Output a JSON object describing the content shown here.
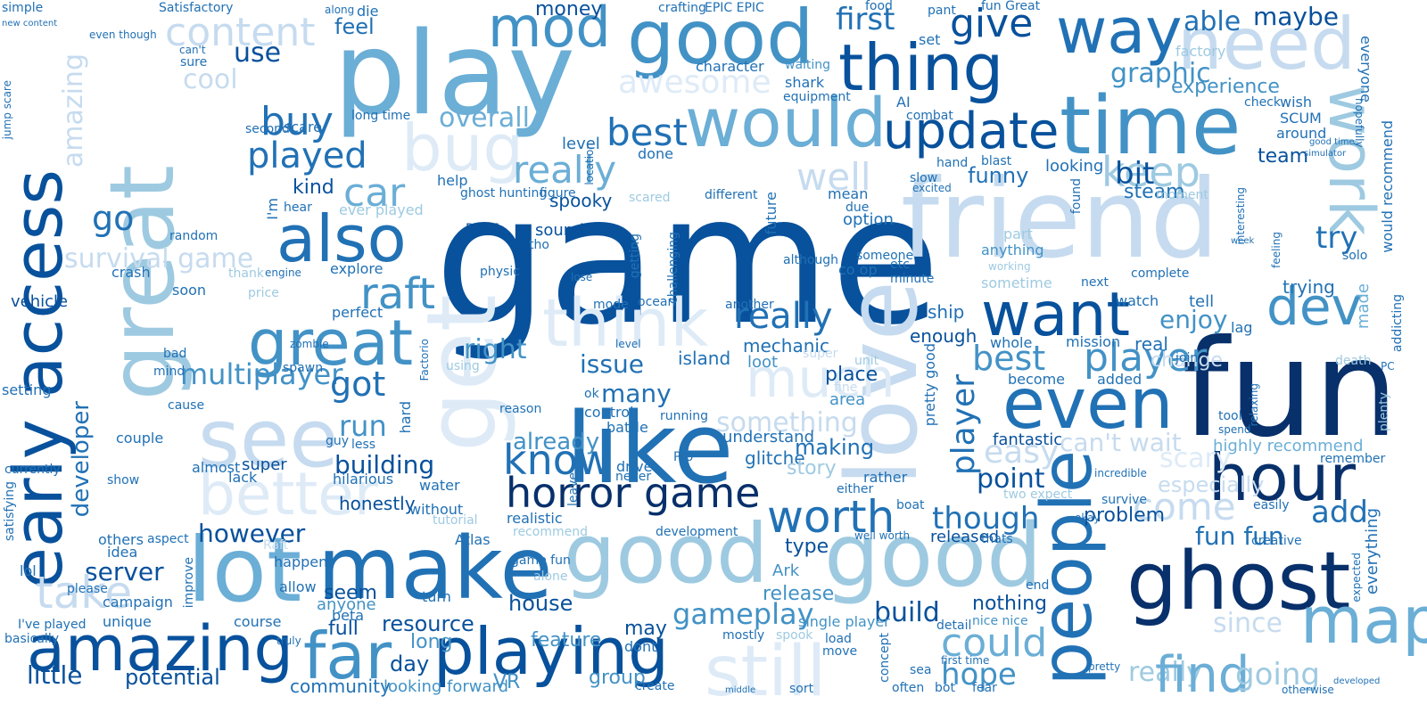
{
  "palette": {
    "c1": "#08306b",
    "c2": "#08519c",
    "c3": "#2171b5",
    "c4": "#4292c6",
    "c5": "#6baed6",
    "c6": "#9ecae1",
    "c7": "#c6dbef",
    "c8": "#deebf7"
  },
  "words": {
    "game": "game",
    "fun": "fun",
    "friend": "friend",
    "play": "play",
    "like": "like",
    "good": "good",
    "good_2": "good",
    "good_3": "good",
    "great": "great",
    "great_2": "great",
    "get": "get",
    "love": "love",
    "make": "make",
    "lot": "lot",
    "amazing": "amazing",
    "amazing_2": "amazing",
    "playing": "playing",
    "ghost": "ghost",
    "hour": "hour",
    "people": "people",
    "even": "even",
    "want": "want",
    "time": "time",
    "way": "way",
    "thing": "thing",
    "update": "update",
    "would": "would",
    "need": "need",
    "work": "work",
    "map": "map",
    "still": "still",
    "far": "far",
    "think": "think",
    "see": "see",
    "better": "better",
    "also": "also",
    "early_access": "early access",
    "bug": "bug",
    "much": "much",
    "mod": "mod",
    "really": "really",
    "really_2": "really",
    "really_3": "really",
    "played": "played",
    "raft": "raft",
    "know": "know",
    "horror_game": "horror game",
    "worth": "worth",
    "dev": "dev",
    "best": "best",
    "best_2": "best",
    "keep": "keep",
    "find": "find",
    "could": "could",
    "player": "player",
    "player_2": "player",
    "gameplay": "gameplay",
    "building": "building",
    "server": "server",
    "however": "however",
    "multiplayer": "multiplayer",
    "buy": "buy",
    "car": "car",
    "content": "content",
    "take": "take",
    "survival_game": "survival game",
    "first": "first",
    "give": "give",
    "graphic": "graphic",
    "experience": "experience",
    "awesome": "awesome",
    "fun_fun": "fun fun",
    "easy": "easy",
    "add": "add",
    "try": "try",
    "enjoy": "enjoy",
    "hope": "hope",
    "build": "build",
    "got": "got",
    "issue": "issue",
    "many": "many",
    "run": "run",
    "already": "already",
    "right": "right",
    "though": "though",
    "point": "point",
    "come": "come",
    "since": "since",
    "going": "going",
    "developer": "developer",
    "little": "little",
    "potential": "potential",
    "resource": "resource",
    "house": "house",
    "feature": "feature",
    "day": "day",
    "full": "full",
    "seem": "seem",
    "anyone": "anyone",
    "nothing": "nothing",
    "may": "may",
    "group": "group",
    "long": "long",
    "community": "community",
    "looking_forward": "looking forward",
    "VR": "VR",
    "money": "money",
    "overall": "overall",
    "feel": "feel",
    "use": "use",
    "cool": "cool",
    "kind": "kind",
    "go": "go",
    "funny": "funny",
    "bit": "bit",
    "steam": "steam",
    "team": "team",
    "maybe": "maybe",
    "able": "able",
    "well": "well",
    "fantastic": "fantastic",
    "problem": "problem",
    "released": "released",
    "especially": "especially",
    "cant_wait": "can't wait",
    "scary": "scary",
    "something": "something",
    "making": "making",
    "understand": "understand",
    "glitche": "glitche",
    "story": "story",
    "type": "type",
    "release": "release",
    "place": "place",
    "area": "area",
    "island": "island",
    "loot": "loot",
    "mechanic": "mechanic",
    "enough": "enough",
    "ship": "ship",
    "whole": "whole",
    "mission": "mission",
    "real": "real",
    "change": "change",
    "trying": "trying",
    "watch": "watch",
    "tell": "tell",
    "lag": "lag",
    "looking": "looking",
    "done": "done",
    "level": "level",
    "spooky": "spooky",
    "sound": "sound",
    "DayZ": "DayZ",
    "help": "help",
    "ghost_hunting": "ghost hunting",
    "figure": "figure",
    "explore": "explore",
    "perfect": "perfect",
    "said": "said",
    "soon": "soon",
    "random": "random",
    "crash": "crash",
    "vehicle": "vehicle",
    "spawn": "spawn",
    "setting": "setting",
    "couple": "couple",
    "almost": "almost",
    "super": "super",
    "lack": "lack",
    "hilarious": "hilarious",
    "honestly": "honestly",
    "water": "water",
    "without": "without",
    "others": "others",
    "idea": "idea",
    "happen": "happen",
    "allow": "allow",
    "campaign": "campaign",
    "unique": "unique",
    "lol": "lol",
    "please": "please",
    "Ive_played": "I've played",
    "basically": "basically",
    "currently": "currently",
    "satisfying": "satisfying",
    "show": "show",
    "cause": "cause",
    "mind": "mind",
    "bad": "bad",
    "character": "character",
    "shark": "shark",
    "waiting": "waiting",
    "equipment": "equipment",
    "long_time": "long time",
    "scare": "scare",
    "second": "second",
    "hear": "hear",
    "Im": "I'm",
    "simple": "simple",
    "new_content": "new content",
    "Satisfactory": "Satisfactory",
    "sure": "sure",
    "cant": "can't",
    "even_though": "even though",
    "jump_scare": "jump scare",
    "combat": "combat",
    "AI": "AI",
    "hand": "hand",
    "blast": "blast",
    "slow": "slow",
    "excited": "excited",
    "set": "set",
    "pant": "pant",
    "food": "food",
    "die": "die",
    "along": "along",
    "fun_Great": "fun Great",
    "crafting": "crafting",
    "EPIC_EPIC": "EPIC EPIC",
    "factory": "factory",
    "check": "check",
    "wish": "wish",
    "SCUM": "SCUM",
    "around": "around",
    "everyone": "everyone",
    "would_recommend": "would recommend",
    "made": "made",
    "solo": "solo",
    "PC": "PC",
    "tool": "tool",
    "spend": "spend",
    "highly_recommend": "highly recommend",
    "remember": "remember",
    "everything": "everything",
    "expected": "expected",
    "join": "join",
    "become": "become",
    "added": "added",
    "ok": "ok",
    "control": "control",
    "reason": "reason",
    "running": "running",
    "battle": "battle",
    "drive": "drive",
    "never": "never",
    "Pro": "Pro",
    "Atlas": "Atlas",
    "development": "development",
    "game_fun": "game fun",
    "create": "create",
    "etc": "etc",
    "although": "although",
    "option": "option",
    "co_op": "co op",
    "someone": "someone",
    "minute": "minute",
    "mean": "mean",
    "due": "due",
    "future": "future",
    "different": "different",
    "scared": "scared",
    "getting": "getting",
    "challenging": "challenging",
    "ocean": "ocean",
    "mode": "mode",
    "lose": "lose",
    "tho": "tho",
    "physic": "physic",
    "Ark": "Ark",
    "found": "found",
    "next": "next",
    "complete": "complete",
    "anything": "anything",
    "part": "part",
    "sometime": "sometime",
    "working": "working",
    "single_player": "single player",
    "load": "load",
    "move": "move",
    "spook": "spook",
    "concept": "concept",
    "detail": "detail",
    "nice_nice": "nice nice",
    "first_time": "first time",
    "sea": "sea",
    "often": "often",
    "bot": "bot",
    "fear": "fear",
    "end": "end",
    "boat": "boat",
    "okay": "okay",
    "thats": "thats",
    "pretty_good": "pretty good",
    "pretty": "pretty",
    "incredible": "incredible",
    "survive": "survive",
    "easily": "easily",
    "creative": "creative",
    "otherwise": "otherwise",
    "developed": "developed",
    "sort": "sort",
    "course": "course",
    "beta": "beta",
    "turn": "turn",
    "dont": "dont",
    "alone": "alone",
    "mostly": "mostly",
    "middle": "middle",
    "tutorial": "tutorial",
    "recommend": "recommend",
    "truly": "truly",
    "improve": "improve",
    "aspect": "aspect",
    "Raft": "Raft",
    "ever_played": "ever played",
    "thank": "thank",
    "price": "price",
    "engine": "engine",
    "zombie": "zombie",
    "Factorio": "Factorio",
    "using": "using",
    "rather": "rather",
    "either": "either",
    "leave": "leave",
    "less": "less",
    "guy": "guy",
    "realistic": "realistic",
    "two_expect": "two expect",
    "well_worth": "well worth",
    "hard": "hard",
    "fine": "fine",
    "unit": "unit",
    "another": "another",
    "super_2": "super",
    "interesting": "interesting",
    "moment": "moment",
    "relaxing": "relaxing",
    "week": "week",
    "feeling": "feeling",
    "death": "death",
    "addicting": "addicting",
    "plenty": "plenty",
    "hopefully": "hopefully",
    "simulator": "simulator",
    "good_time": "good time",
    "level_2": "level",
    "location": "location"
  }
}
